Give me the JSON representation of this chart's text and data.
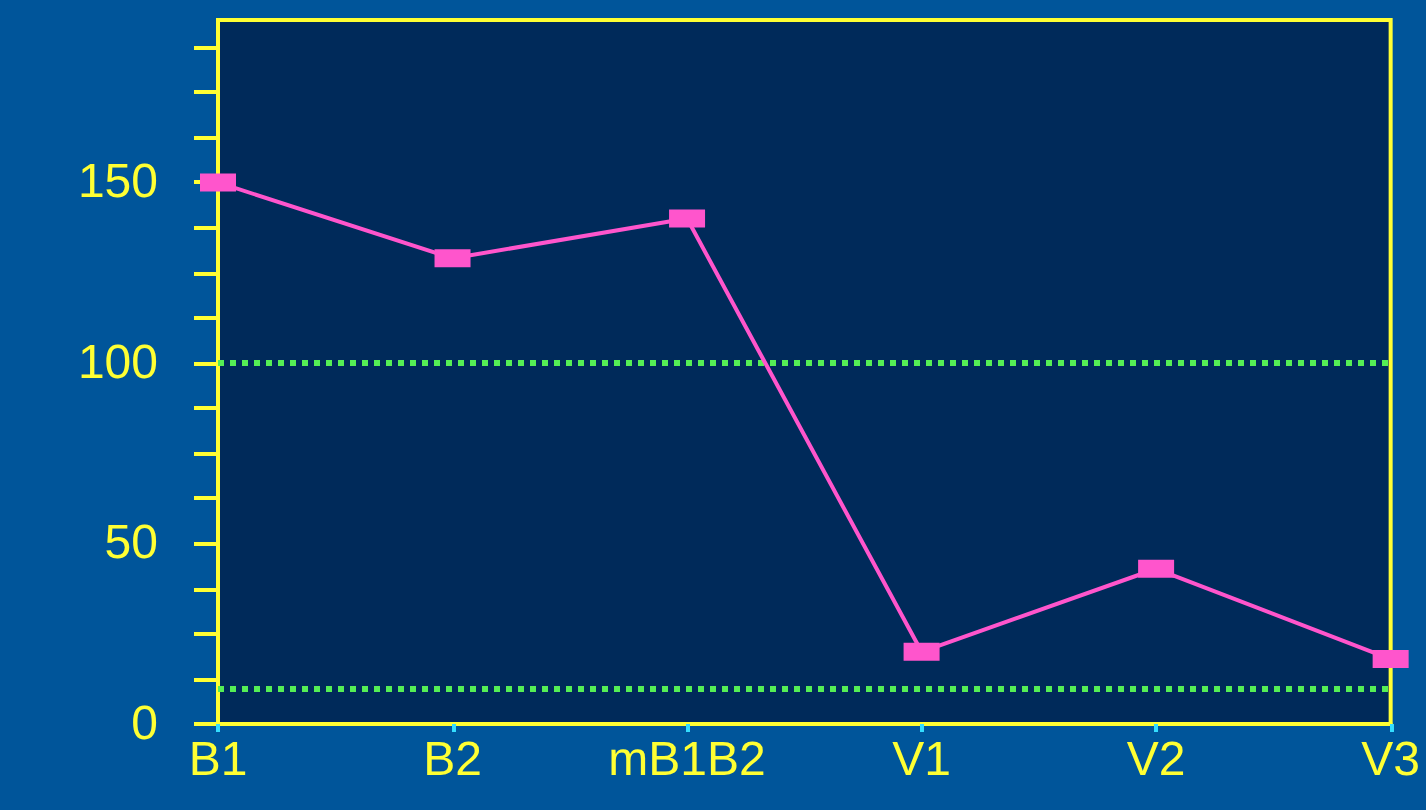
{
  "chart_data": {
    "type": "line",
    "categories": [
      "B1",
      "B2",
      "mB1B2",
      "V1",
      "V2",
      "V3"
    ],
    "series": [
      {
        "color": "#ff55cc",
        "values": [
          150,
          129,
          140,
          20,
          43,
          18
        ]
      }
    ],
    "ylim": [
      0,
      195
    ],
    "yticks": [
      0,
      {
        "value": 12.5,
        "label": null
      },
      {
        "value": 25,
        "label": null
      },
      {
        "value": 37.5,
        "label": null
      },
      50,
      {
        "value": 62.5,
        "label": null
      },
      {
        "value": 75,
        "label": null
      },
      {
        "value": 87.5,
        "label": null
      },
      100,
      {
        "value": 112.5,
        "label": null
      },
      {
        "value": 125,
        "label": null
      },
      {
        "value": 137.5,
        "label": null
      },
      150,
      {
        "value": 162.5,
        "label": null
      },
      {
        "value": 175,
        "label": null
      },
      {
        "value": 187.5,
        "label": null
      }
    ],
    "ref_lines": [
      {
        "axis": "y",
        "value": 100,
        "color": "#55ee55",
        "line_style": "dotted"
      },
      {
        "axis": "y",
        "value": 10,
        "color": "#55ee55",
        "line_style": "dotted"
      }
    ],
    "grid": false,
    "marker": "square",
    "line_style": "solid"
  }
}
